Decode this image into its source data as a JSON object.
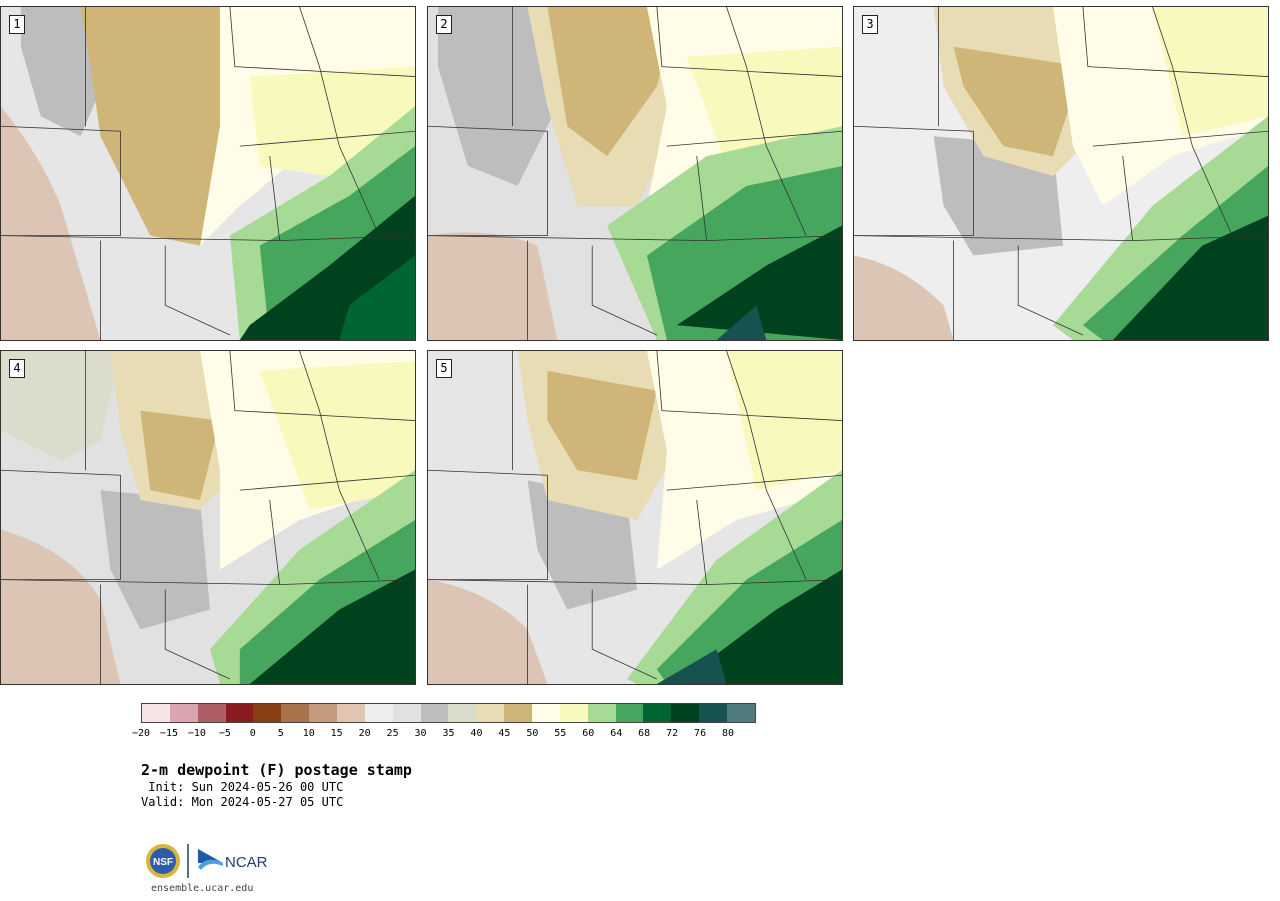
{
  "title": "2-m dewpoint (F) postage stamp",
  "init": " Init: Sun 2024-05-26 00 UTC",
  "valid": "Valid: Mon 2024-05-27 05 UTC",
  "website": "ensemble.ucar.edu",
  "logos": {
    "left": "NSF",
    "right": "NCAR"
  },
  "panels": [
    {
      "label": "1"
    },
    {
      "label": "2"
    },
    {
      "label": "3"
    },
    {
      "label": "4"
    },
    {
      "label": "5"
    }
  ],
  "colorbar": {
    "colors": [
      "#f7e4e6",
      "#d9a5ae",
      "#b15d65",
      "#8c1a21",
      "#8a3f13",
      "#a9734c",
      "#c59b80",
      "#e2c5b1",
      "#eeeeee",
      "#e1e1e1",
      "#bdbdbd",
      "#dcdccc",
      "#e8dcb5",
      "#cfb678",
      "#fffde8",
      "#f7f9bd",
      "#a6da95",
      "#47a65e",
      "#006631",
      "#00421d",
      "#175251",
      "#527b7d"
    ],
    "tick_labels": [
      "−20",
      "−15",
      "−10",
      "−5",
      "0",
      "5",
      "10",
      "15",
      "20",
      "25",
      "30",
      "35",
      "40",
      "45",
      "50",
      "55",
      "60",
      "64",
      "68",
      "72",
      "76",
      "80"
    ]
  }
}
